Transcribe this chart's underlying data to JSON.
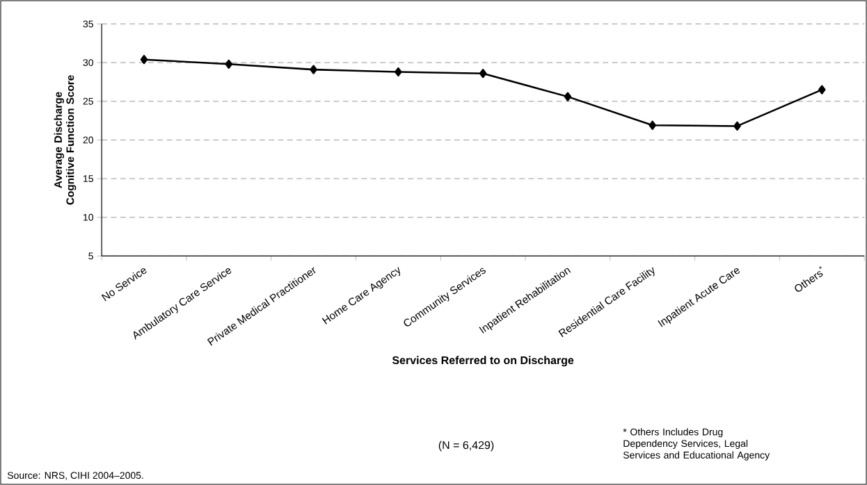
{
  "chart_data": {
    "type": "line",
    "xlabel": "Services Referred to on Discharge",
    "ylabel": "Average Discharge Cognitive Function Score",
    "categories": [
      "No Service",
      "Ambulatory Care Service",
      "Private Medical Practitioner",
      "Home Care Agency",
      "Community Services",
      "Inpatient Rehabilitation",
      "Residential Care Facility",
      "Inpatient Acute Care",
      "Others$^{*}$"
    ],
    "series": [
      {
        "color": "#000000",
        "values": [
          30.4,
          29.8,
          29.1,
          28.8,
          28.6,
          25.6,
          21.9,
          21.8,
          26.5
        ]
      }
    ],
    "ylim": [
      5,
      35
    ],
    "yticks": [
      5,
      10,
      15,
      20,
      25,
      30,
      35
    ],
    "grid": "y",
    "marker": "diamond",
    "line_style": "solid",
    "annotations": [
      "(N = 6,429)",
      "* Others Includes Drug Dependency Services, Legal Services and Educational Agency",
      "Source: NRS, CIHI 2004–2005."
    ]
  }
}
